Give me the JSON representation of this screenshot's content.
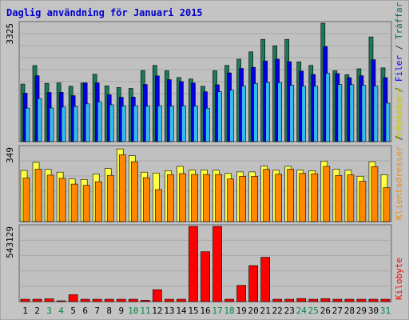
{
  "chart_data": [
    {
      "type": "bar",
      "title": "Daglig användning för Januari 2015",
      "categories": [
        "1",
        "2",
        "3",
        "4",
        "5",
        "6",
        "7",
        "8",
        "9",
        "10",
        "11",
        "12",
        "13",
        "14",
        "15",
        "16",
        "17",
        "18",
        "19",
        "20",
        "21",
        "22",
        "23",
        "24",
        "25",
        "26",
        "27",
        "28",
        "29",
        "30",
        "31"
      ],
      "weekend_days": [
        "3",
        "4",
        "10",
        "11",
        "17",
        "18",
        "24",
        "25",
        "31"
      ],
      "ymax_label": "3325",
      "ylim": [
        0,
        3325
      ],
      "ylabel_parts": [
        {
          "text": "Besökare",
          "color": "#cccc00"
        },
        {
          "text": " / ",
          "color": "#333333"
        },
        {
          "text": "Filer",
          "color": "#0000ff"
        },
        {
          "text": " / ",
          "color": "#333333"
        },
        {
          "text": "Träffar",
          "color": "#006666"
        }
      ],
      "series": [
        {
          "name": "Träffar",
          "color": "#1a7a5a",
          "values": [
            1615,
            2135,
            1635,
            1650,
            1555,
            1645,
            1890,
            1565,
            1520,
            1495,
            1995,
            2140,
            1990,
            1800,
            1760,
            1555,
            1990,
            2140,
            2315,
            2520,
            2870,
            2690,
            2870,
            2240,
            2140,
            3325,
            1990,
            1880,
            2045,
            2940,
            2070
          ]
        },
        {
          "name": "Filer",
          "color": "#0000dd",
          "values": [
            1360,
            1850,
            1380,
            1385,
            1290,
            1650,
            1650,
            1315,
            1245,
            1250,
            1605,
            1845,
            1740,
            1685,
            1645,
            1400,
            1595,
            1930,
            2055,
            2085,
            2265,
            2315,
            2245,
            1980,
            1885,
            2670,
            1910,
            1795,
            1850,
            2300,
            1795
          ]
        },
        {
          "name": "Besökare",
          "color": "#33bbee",
          "values": [
            940,
            1210,
            945,
            970,
            985,
            1060,
            1120,
            1035,
            1000,
            1005,
            1000,
            1005,
            1000,
            1000,
            1000,
            935,
            1400,
            1445,
            1560,
            1630,
            1660,
            1655,
            1580,
            1555,
            1555,
            1915,
            1605,
            1600,
            1580,
            1560,
            1080
          ]
        }
      ]
    },
    {
      "type": "bar",
      "ymax_label": "349",
      "ylim": [
        0,
        349
      ],
      "ylabel_parts": [
        {
          "text": "Klientadresser",
          "color": "#ff8800"
        },
        {
          "text": " / ",
          "color": "#333333"
        },
        {
          "text": "Besökare",
          "color": "#cccc00"
        }
      ],
      "series": [
        {
          "name": "Besökare",
          "color": "#ffff44",
          "values": [
            240,
            278,
            245,
            232,
            200,
            198,
            223,
            249,
            341,
            309,
            232,
            228,
            239,
            259,
            242,
            242,
            241,
            226,
            233,
            233,
            260,
            241,
            259,
            242,
            239,
            284,
            245,
            241,
            213,
            281,
            220
          ]
        },
        {
          "name": "Klientadresser",
          "color": "#ff8800",
          "values": [
            204,
            246,
            218,
            203,
            176,
            170,
            187,
            217,
            313,
            281,
            206,
            150,
            220,
            225,
            221,
            221,
            221,
            200,
            212,
            212,
            245,
            222,
            246,
            226,
            224,
            259,
            216,
            219,
            189,
            258,
            159
          ]
        }
      ]
    },
    {
      "type": "bar",
      "ymax_label": "543129",
      "ylim": [
        0,
        543129
      ],
      "ylabel_parts": [
        {
          "text": "Kilobyte",
          "color": "#ff0000"
        }
      ],
      "series": [
        {
          "name": "Kilobyte",
          "color": "#ff0000",
          "values": [
            17000,
            17000,
            20000,
            5000,
            50000,
            17000,
            17000,
            17000,
            17000,
            17000,
            9000,
            86000,
            17000,
            17000,
            543129,
            360000,
            543129,
            17000,
            117000,
            260000,
            320000,
            17000,
            17000,
            22000,
            17000,
            21000,
            17000,
            17000,
            17000,
            17000,
            17000
          ]
        }
      ]
    }
  ]
}
